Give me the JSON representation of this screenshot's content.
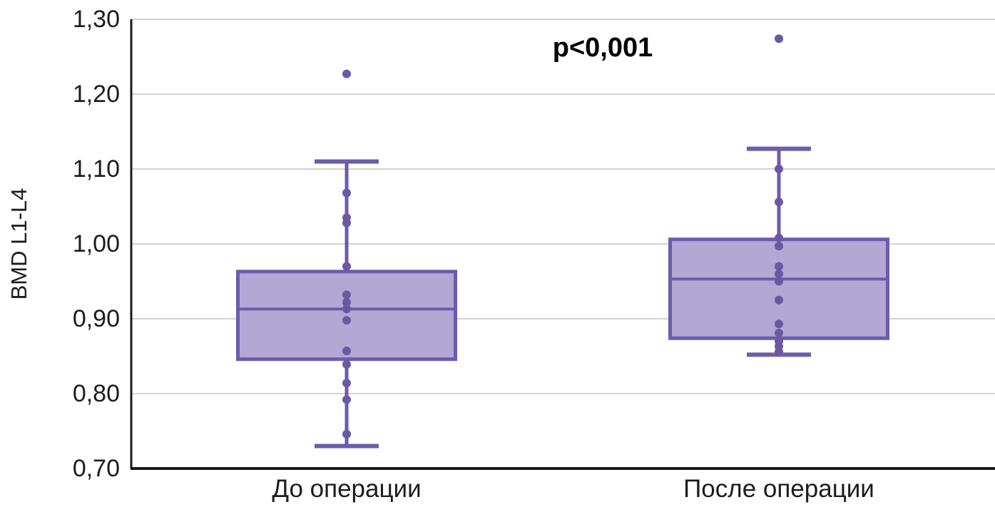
{
  "chart_data": {
    "type": "boxplot",
    "title": "",
    "ylabel": "BMD L1-L4",
    "xlabel": "",
    "annotation": "p<0,001",
    "ylim": [
      0.7,
      1.3
    ],
    "ytick_step": 0.1,
    "ytick_labels": [
      "1,30",
      "1,20",
      "1,10",
      "1,00",
      "0,90",
      "0,80",
      "0,70"
    ],
    "categories": [
      "До операции",
      "После операции"
    ],
    "grid": "horizontal",
    "legend": "none",
    "series": [
      {
        "name": "До операции",
        "whisker_low": 0.73,
        "q1": 0.846,
        "median": 0.913,
        "q3": 0.963,
        "whisker_high": 1.11,
        "outliers": [
          1.227
        ],
        "points": [
          1.227,
          1.068,
          1.035,
          1.028,
          0.97,
          0.932,
          0.922,
          0.913,
          0.898,
          0.857,
          0.839,
          0.814,
          0.792,
          0.746
        ]
      },
      {
        "name": "После операции",
        "whisker_low": 0.852,
        "q1": 0.874,
        "median": 0.953,
        "q3": 1.006,
        "whisker_high": 1.127,
        "outliers": [
          1.274
        ],
        "points": [
          1.274,
          1.1,
          1.056,
          1.008,
          0.997,
          0.97,
          0.96,
          0.95,
          0.925,
          0.893,
          0.881,
          0.87,
          0.863,
          0.856
        ]
      }
    ],
    "colors": {
      "box_fill": "#b3a8d4",
      "box_border": "#6c5cab",
      "point": "#6a59a2",
      "gridline": "#c4c4c4",
      "axis": "#1a1a1a",
      "text": "#1c1c1c"
    }
  }
}
